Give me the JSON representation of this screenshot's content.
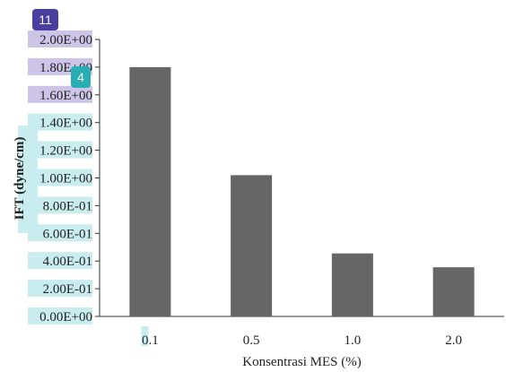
{
  "chart_data": {
    "type": "bar",
    "title": "",
    "categories": [
      "0.1",
      "0.5",
      "1.0",
      "2.0"
    ],
    "values": [
      1.8,
      1.02,
      0.455,
      0.355
    ],
    "xlabel": "Konsentrasi MES (%)",
    "ylabel": "IFT (dyne/cm)",
    "ylim": [
      0,
      2.0
    ],
    "yticks": [
      0,
      0.2,
      0.4,
      0.6,
      0.8,
      1.0,
      1.2,
      1.4,
      1.6,
      1.8,
      2.0
    ],
    "ytick_labels": [
      "0.00E+00",
      "2.00E-01",
      "4.00E-01",
      "6.00E-01",
      "8.00E-01",
      "1.00E+00",
      "1.20E+00",
      "1.40E+00",
      "1.60E+00",
      "1.80E+00",
      "2.00E+00"
    ],
    "grid": false,
    "bar_color": "#666666"
  },
  "annotations": {
    "badge_a": {
      "label": "11",
      "color": "#4a3fa0"
    },
    "badge_b": {
      "label": "4",
      "color": "#27aeb2"
    },
    "highlight_purple": "#ccc5e8",
    "highlight_cyan": "#c9ecee"
  }
}
